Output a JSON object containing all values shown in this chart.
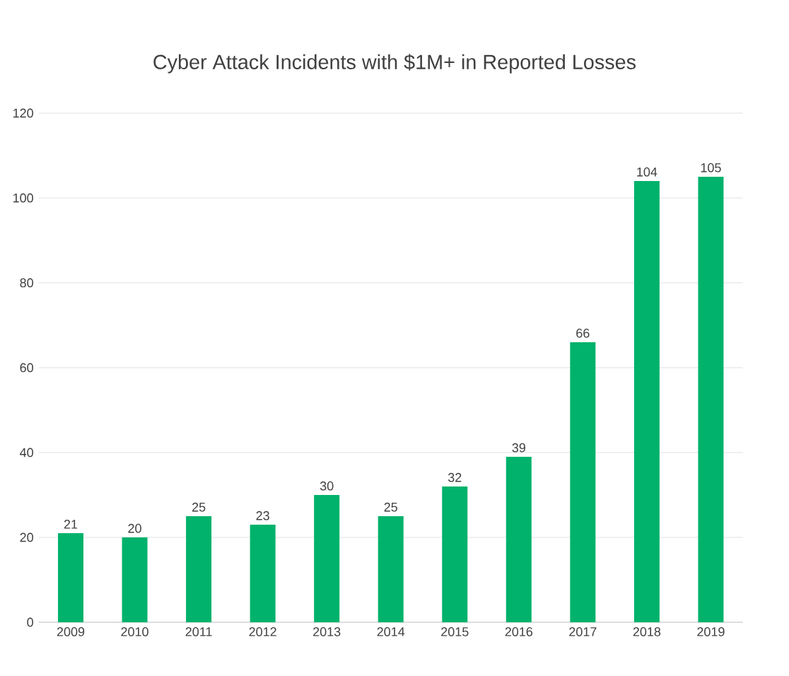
{
  "chart_data": {
    "type": "bar",
    "title": "Cyber Attack Incidents with $1M+ in Reported Losses",
    "categories": [
      "2009",
      "2010",
      "2011",
      "2012",
      "2013",
      "2014",
      "2015",
      "2016",
      "2017",
      "2018",
      "2019"
    ],
    "values": [
      21,
      20,
      25,
      23,
      30,
      25,
      32,
      39,
      66,
      104,
      105
    ],
    "color": "#00b26b",
    "ylim": [
      0,
      120
    ],
    "yticks": [
      0,
      20,
      40,
      60,
      80,
      100,
      120
    ],
    "grid": "y",
    "data_labels": true
  }
}
